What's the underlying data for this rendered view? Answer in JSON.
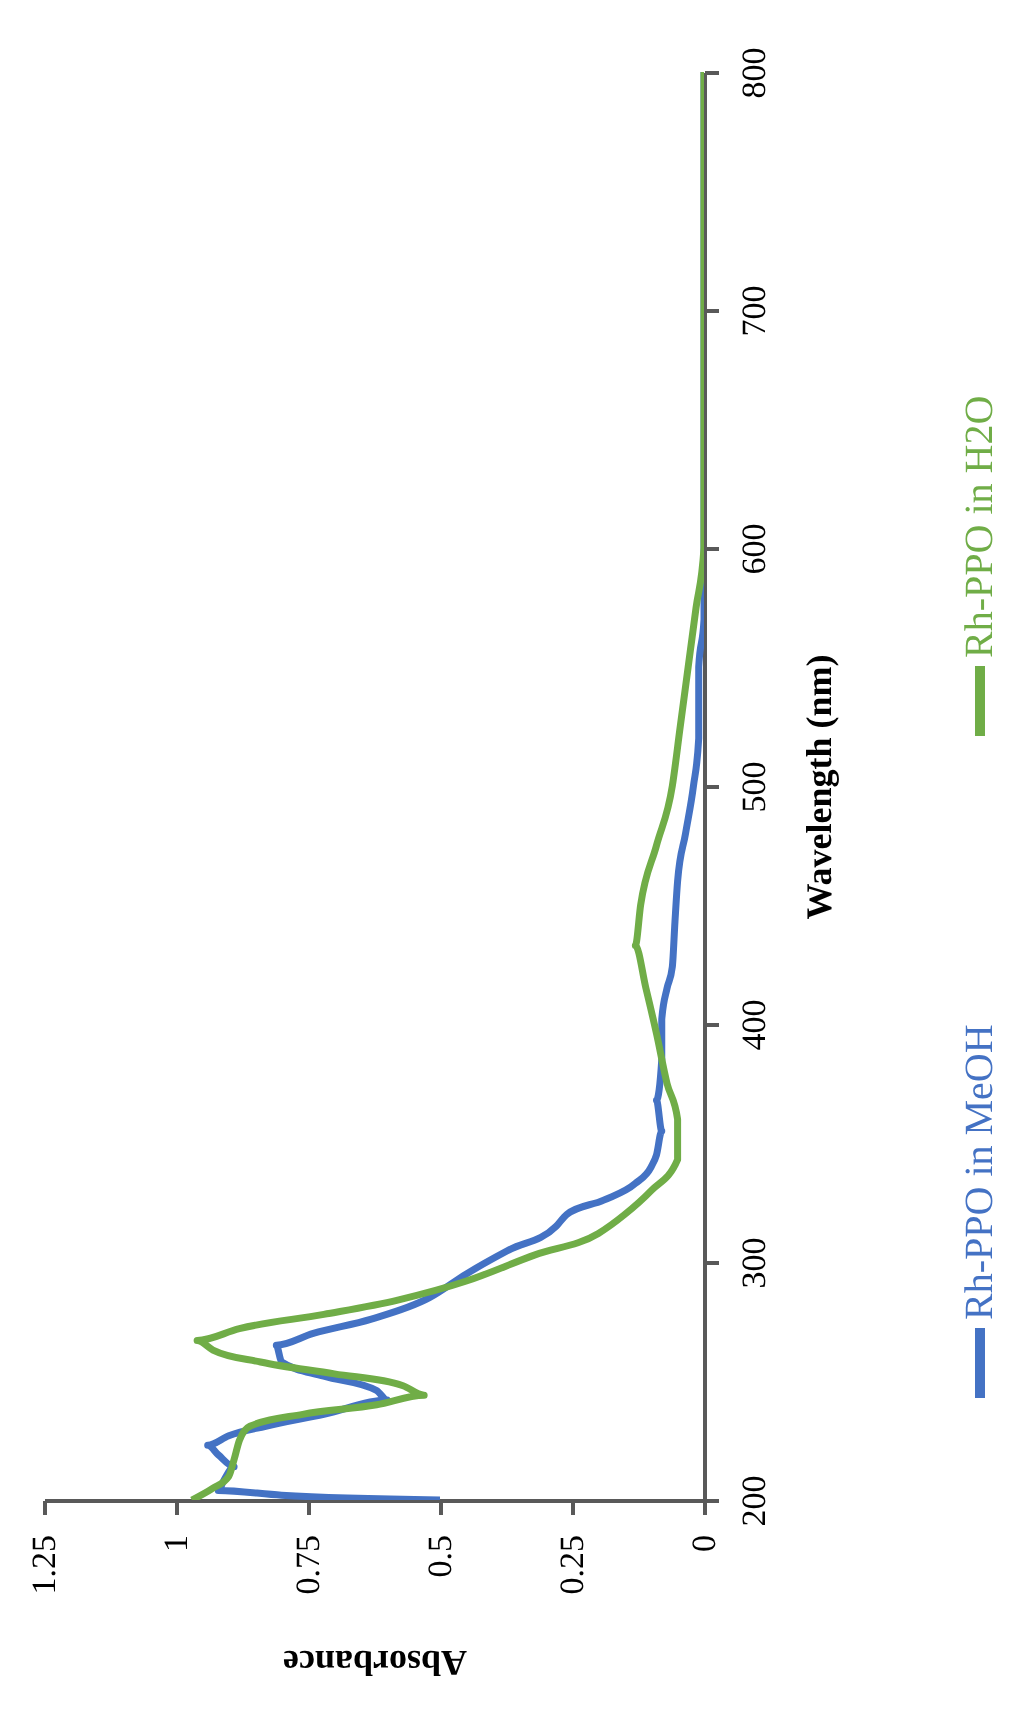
{
  "chart_data": {
    "type": "line",
    "xlabel": "Absorbance",
    "ylabel": "Wavelength (nm)",
    "xlim": [
      1.25,
      0
    ],
    "xticks": [
      1.25,
      1,
      0.75,
      0.5,
      0.25,
      0
    ],
    "ylim": [
      200,
      800
    ],
    "yticks": [
      200,
      300,
      400,
      500,
      600,
      700,
      800
    ],
    "grid": false,
    "legend": "right",
    "line_style": "solid",
    "marker": "none",
    "series": [
      {
        "name": "Rh-PPO in MeOH",
        "color": "#4472c4",
        "x": [
          0.5,
          0.8,
          0.92,
          0.91,
          0.89,
          0.92,
          0.94,
          0.9,
          0.83,
          0.72,
          0.6,
          0.62,
          0.72,
          0.8,
          0.81,
          0.74,
          0.63,
          0.52,
          0.45,
          0.37,
          0.28,
          0.26,
          0.19,
          0.13,
          0.1,
          0.09,
          0.08,
          0.09,
          0.08,
          0.08,
          0.07,
          0.06,
          0.055,
          0.05,
          0.035,
          0.02,
          0.01,
          0.01,
          0,
          0,
          0,
          0
        ],
        "values": [
          200,
          202,
          204,
          208,
          214,
          219,
          223,
          227,
          231,
          236,
          242,
          246,
          252,
          258,
          265,
          270,
          276,
          285,
          295,
          305,
          315,
          320,
          326,
          333,
          340,
          345,
          355,
          368,
          385,
          402,
          415,
          424,
          443,
          460,
          480,
          500,
          520,
          550,
          570,
          600,
          700,
          800
        ]
      },
      {
        "name": "Rh-PPO in H2O",
        "color": "#70ad47",
        "x": [
          0.97,
          0.93,
          0.9,
          0.89,
          0.88,
          0.86,
          0.76,
          0.62,
          0.53,
          0.57,
          0.7,
          0.84,
          0.93,
          0.96,
          0.88,
          0.72,
          0.58,
          0.45,
          0.32,
          0.2,
          0.15,
          0.1,
          0.05,
          0.05,
          0.05,
          0.07,
          0.09,
          0.11,
          0.13,
          0.12,
          0.09,
          0.06,
          0.045,
          0.03,
          0.015,
          0,
          0,
          0
        ],
        "values": [
          200,
          205,
          210,
          217,
          225,
          231,
          236,
          240,
          244,
          248,
          253,
          258,
          263,
          267,
          272,
          278,
          284,
          292,
          303,
          312,
          320,
          330,
          343,
          350,
          360,
          375,
          396,
          415,
          433,
          450,
          475,
          500,
          525,
          550,
          575,
          600,
          700,
          800
        ]
      }
    ]
  }
}
